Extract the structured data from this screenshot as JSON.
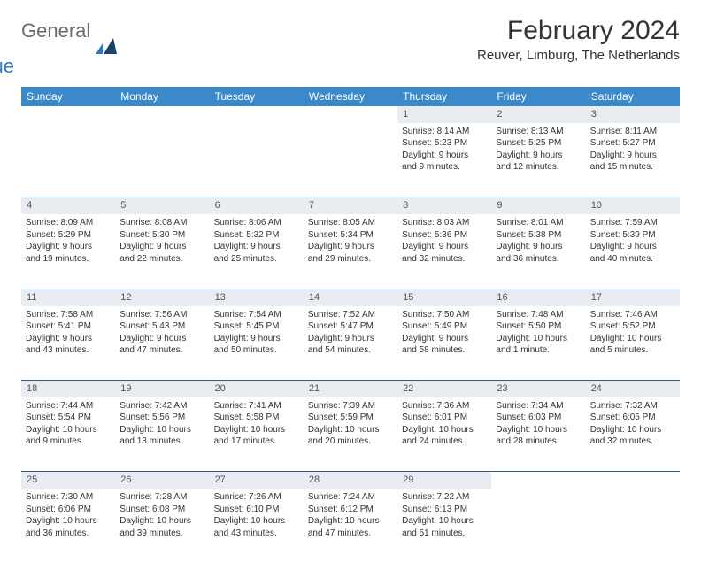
{
  "logo": {
    "general": "General",
    "blue": "Blue"
  },
  "title": "February 2024",
  "location": "Reuver, Limburg, The Netherlands",
  "colors": {
    "header_bg": "#3b89c9",
    "daynum_bg": "#e9edf1",
    "row_border": "#2b5e8a",
    "logo_gray": "#6b6b6b",
    "logo_blue": "#2b7bbf"
  },
  "day_headers": [
    "Sunday",
    "Monday",
    "Tuesday",
    "Wednesday",
    "Thursday",
    "Friday",
    "Saturday"
  ],
  "weeks": [
    {
      "nums": [
        "",
        "",
        "",
        "",
        "1",
        "2",
        "3"
      ],
      "cells": [
        null,
        null,
        null,
        null,
        {
          "sunrise": "Sunrise: 8:14 AM",
          "sunset": "Sunset: 5:23 PM",
          "day1": "Daylight: 9 hours",
          "day2": "and 9 minutes."
        },
        {
          "sunrise": "Sunrise: 8:13 AM",
          "sunset": "Sunset: 5:25 PM",
          "day1": "Daylight: 9 hours",
          "day2": "and 12 minutes."
        },
        {
          "sunrise": "Sunrise: 8:11 AM",
          "sunset": "Sunset: 5:27 PM",
          "day1": "Daylight: 9 hours",
          "day2": "and 15 minutes."
        }
      ]
    },
    {
      "nums": [
        "4",
        "5",
        "6",
        "7",
        "8",
        "9",
        "10"
      ],
      "cells": [
        {
          "sunrise": "Sunrise: 8:09 AM",
          "sunset": "Sunset: 5:29 PM",
          "day1": "Daylight: 9 hours",
          "day2": "and 19 minutes."
        },
        {
          "sunrise": "Sunrise: 8:08 AM",
          "sunset": "Sunset: 5:30 PM",
          "day1": "Daylight: 9 hours",
          "day2": "and 22 minutes."
        },
        {
          "sunrise": "Sunrise: 8:06 AM",
          "sunset": "Sunset: 5:32 PM",
          "day1": "Daylight: 9 hours",
          "day2": "and 25 minutes."
        },
        {
          "sunrise": "Sunrise: 8:05 AM",
          "sunset": "Sunset: 5:34 PM",
          "day1": "Daylight: 9 hours",
          "day2": "and 29 minutes."
        },
        {
          "sunrise": "Sunrise: 8:03 AM",
          "sunset": "Sunset: 5:36 PM",
          "day1": "Daylight: 9 hours",
          "day2": "and 32 minutes."
        },
        {
          "sunrise": "Sunrise: 8:01 AM",
          "sunset": "Sunset: 5:38 PM",
          "day1": "Daylight: 9 hours",
          "day2": "and 36 minutes."
        },
        {
          "sunrise": "Sunrise: 7:59 AM",
          "sunset": "Sunset: 5:39 PM",
          "day1": "Daylight: 9 hours",
          "day2": "and 40 minutes."
        }
      ]
    },
    {
      "nums": [
        "11",
        "12",
        "13",
        "14",
        "15",
        "16",
        "17"
      ],
      "cells": [
        {
          "sunrise": "Sunrise: 7:58 AM",
          "sunset": "Sunset: 5:41 PM",
          "day1": "Daylight: 9 hours",
          "day2": "and 43 minutes."
        },
        {
          "sunrise": "Sunrise: 7:56 AM",
          "sunset": "Sunset: 5:43 PM",
          "day1": "Daylight: 9 hours",
          "day2": "and 47 minutes."
        },
        {
          "sunrise": "Sunrise: 7:54 AM",
          "sunset": "Sunset: 5:45 PM",
          "day1": "Daylight: 9 hours",
          "day2": "and 50 minutes."
        },
        {
          "sunrise": "Sunrise: 7:52 AM",
          "sunset": "Sunset: 5:47 PM",
          "day1": "Daylight: 9 hours",
          "day2": "and 54 minutes."
        },
        {
          "sunrise": "Sunrise: 7:50 AM",
          "sunset": "Sunset: 5:49 PM",
          "day1": "Daylight: 9 hours",
          "day2": "and 58 minutes."
        },
        {
          "sunrise": "Sunrise: 7:48 AM",
          "sunset": "Sunset: 5:50 PM",
          "day1": "Daylight: 10 hours",
          "day2": "and 1 minute."
        },
        {
          "sunrise": "Sunrise: 7:46 AM",
          "sunset": "Sunset: 5:52 PM",
          "day1": "Daylight: 10 hours",
          "day2": "and 5 minutes."
        }
      ]
    },
    {
      "nums": [
        "18",
        "19",
        "20",
        "21",
        "22",
        "23",
        "24"
      ],
      "cells": [
        {
          "sunrise": "Sunrise: 7:44 AM",
          "sunset": "Sunset: 5:54 PM",
          "day1": "Daylight: 10 hours",
          "day2": "and 9 minutes."
        },
        {
          "sunrise": "Sunrise: 7:42 AM",
          "sunset": "Sunset: 5:56 PM",
          "day1": "Daylight: 10 hours",
          "day2": "and 13 minutes."
        },
        {
          "sunrise": "Sunrise: 7:41 AM",
          "sunset": "Sunset: 5:58 PM",
          "day1": "Daylight: 10 hours",
          "day2": "and 17 minutes."
        },
        {
          "sunrise": "Sunrise: 7:39 AM",
          "sunset": "Sunset: 5:59 PM",
          "day1": "Daylight: 10 hours",
          "day2": "and 20 minutes."
        },
        {
          "sunrise": "Sunrise: 7:36 AM",
          "sunset": "Sunset: 6:01 PM",
          "day1": "Daylight: 10 hours",
          "day2": "and 24 minutes."
        },
        {
          "sunrise": "Sunrise: 7:34 AM",
          "sunset": "Sunset: 6:03 PM",
          "day1": "Daylight: 10 hours",
          "day2": "and 28 minutes."
        },
        {
          "sunrise": "Sunrise: 7:32 AM",
          "sunset": "Sunset: 6:05 PM",
          "day1": "Daylight: 10 hours",
          "day2": "and 32 minutes."
        }
      ]
    },
    {
      "nums": [
        "25",
        "26",
        "27",
        "28",
        "29",
        "",
        ""
      ],
      "cells": [
        {
          "sunrise": "Sunrise: 7:30 AM",
          "sunset": "Sunset: 6:06 PM",
          "day1": "Daylight: 10 hours",
          "day2": "and 36 minutes."
        },
        {
          "sunrise": "Sunrise: 7:28 AM",
          "sunset": "Sunset: 6:08 PM",
          "day1": "Daylight: 10 hours",
          "day2": "and 39 minutes."
        },
        {
          "sunrise": "Sunrise: 7:26 AM",
          "sunset": "Sunset: 6:10 PM",
          "day1": "Daylight: 10 hours",
          "day2": "and 43 minutes."
        },
        {
          "sunrise": "Sunrise: 7:24 AM",
          "sunset": "Sunset: 6:12 PM",
          "day1": "Daylight: 10 hours",
          "day2": "and 47 minutes."
        },
        {
          "sunrise": "Sunrise: 7:22 AM",
          "sunset": "Sunset: 6:13 PM",
          "day1": "Daylight: 10 hours",
          "day2": "and 51 minutes."
        },
        null,
        null
      ]
    }
  ]
}
